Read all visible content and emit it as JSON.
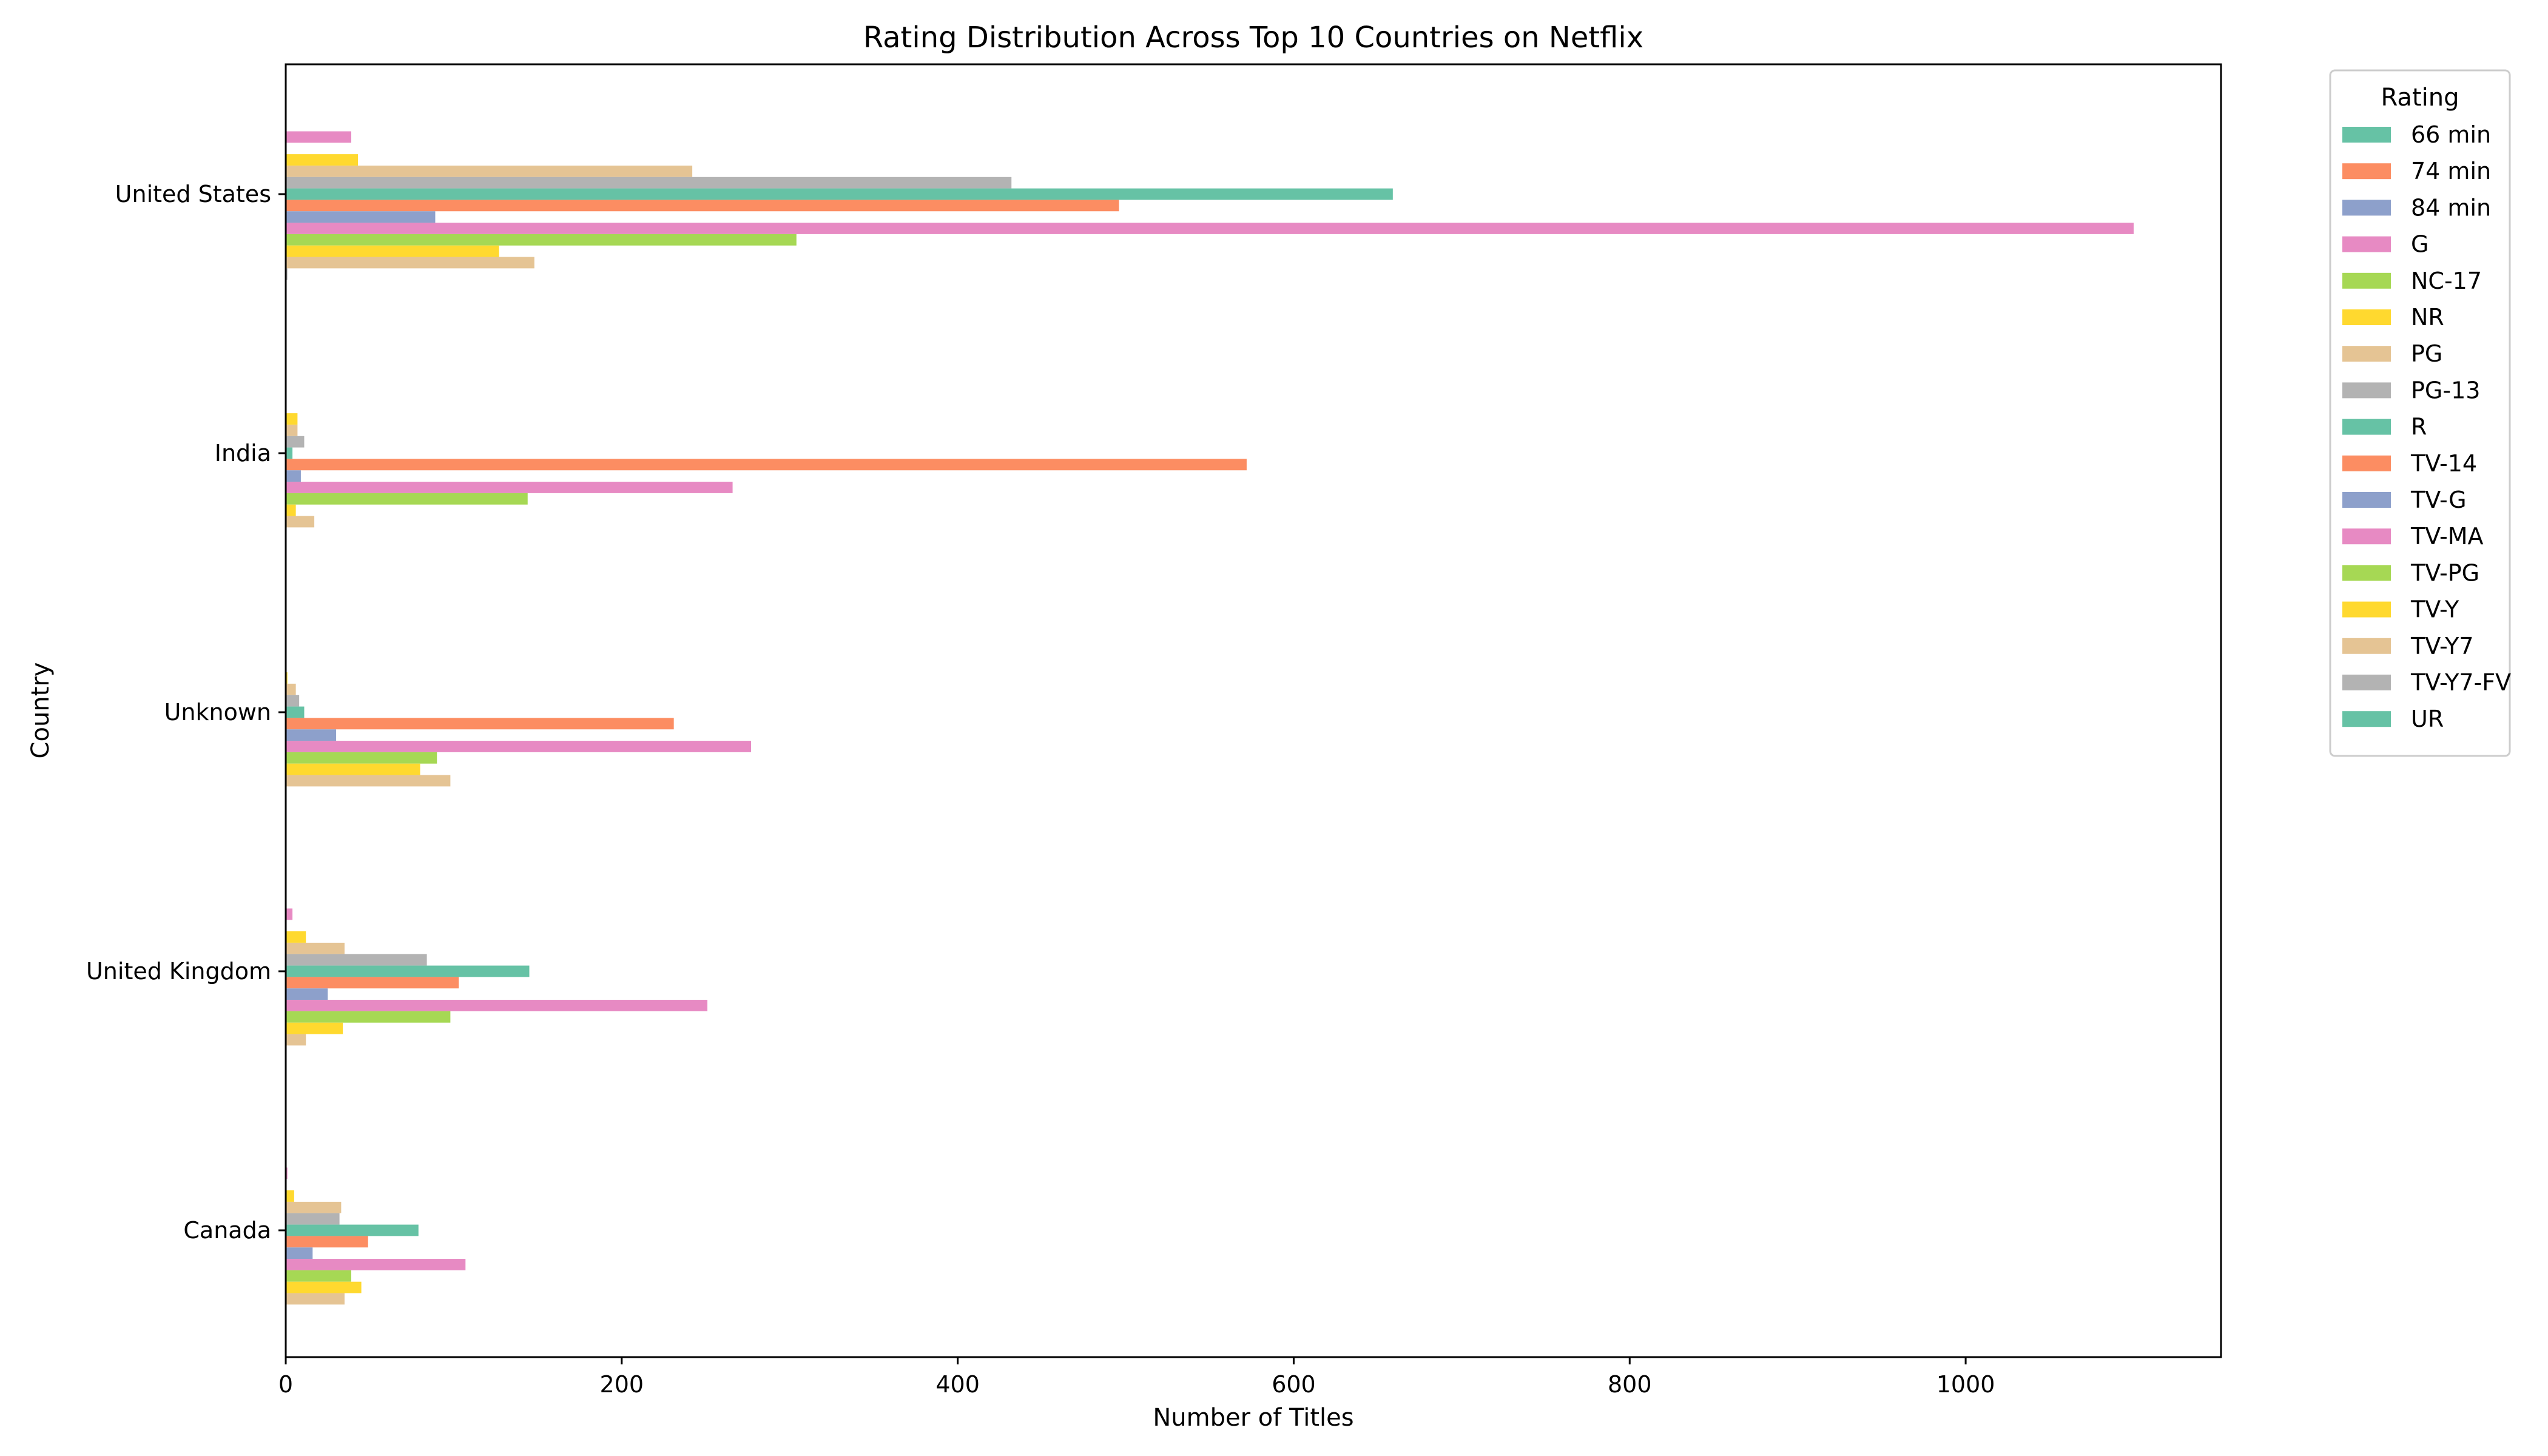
{
  "chart_data": {
    "type": "bar",
    "orientation": "horizontal",
    "title": "Rating Distribution Across Top 10 Countries on Netflix",
    "xlabel": "Number of Titles",
    "ylabel": "Country",
    "xlim": [
      0,
      1152
    ],
    "xticks": [
      0,
      200,
      400,
      600,
      800,
      1000
    ],
    "grid": false,
    "legend": {
      "title": "Rating",
      "placement": "outside-right"
    },
    "categories": [
      "United States",
      "India",
      "Unknown",
      "United Kingdom",
      "Canada"
    ],
    "series": [
      {
        "name": "66 min",
        "color": "#66c2a5",
        "values": [
          0,
          0,
          0,
          0,
          0
        ]
      },
      {
        "name": "74 min",
        "color": "#fc8d62",
        "values": [
          0,
          0,
          0,
          0,
          0
        ]
      },
      {
        "name": "84 min",
        "color": "#8da0cb",
        "values": [
          0,
          0,
          0,
          0,
          0
        ]
      },
      {
        "name": "G",
        "color": "#e78ac3",
        "values": [
          39,
          0,
          0,
          4,
          1
        ]
      },
      {
        "name": "NC-17",
        "color": "#a6d854",
        "values": [
          0,
          0,
          0,
          0,
          0
        ]
      },
      {
        "name": "NR",
        "color": "#ffd92f",
        "values": [
          43,
          7,
          1,
          12,
          5
        ]
      },
      {
        "name": "PG",
        "color": "#e5c494",
        "values": [
          242,
          7,
          6,
          35,
          33
        ]
      },
      {
        "name": "PG-13",
        "color": "#b3b3b3",
        "values": [
          432,
          11,
          8,
          84,
          32
        ]
      },
      {
        "name": "R",
        "color": "#66c2a5",
        "values": [
          659,
          4,
          11,
          145,
          79
        ]
      },
      {
        "name": "TV-14",
        "color": "#fc8d62",
        "values": [
          496,
          572,
          231,
          103,
          49
        ]
      },
      {
        "name": "TV-G",
        "color": "#8da0cb",
        "values": [
          89,
          9,
          30,
          25,
          16
        ]
      },
      {
        "name": "TV-MA",
        "color": "#e78ac3",
        "values": [
          1100,
          266,
          277,
          251,
          107
        ]
      },
      {
        "name": "TV-PG",
        "color": "#a6d854",
        "values": [
          304,
          144,
          90,
          98,
          39
        ]
      },
      {
        "name": "TV-Y",
        "color": "#ffd92f",
        "values": [
          127,
          6,
          80,
          34,
          45
        ]
      },
      {
        "name": "TV-Y7",
        "color": "#e5c494",
        "values": [
          148,
          17,
          98,
          12,
          35
        ]
      },
      {
        "name": "TV-Y7-FV",
        "color": "#b3b3b3",
        "values": [
          1,
          0,
          0,
          0,
          0
        ]
      },
      {
        "name": "UR",
        "color": "#66c2a5",
        "values": [
          0,
          0,
          0,
          0,
          0
        ]
      }
    ]
  }
}
